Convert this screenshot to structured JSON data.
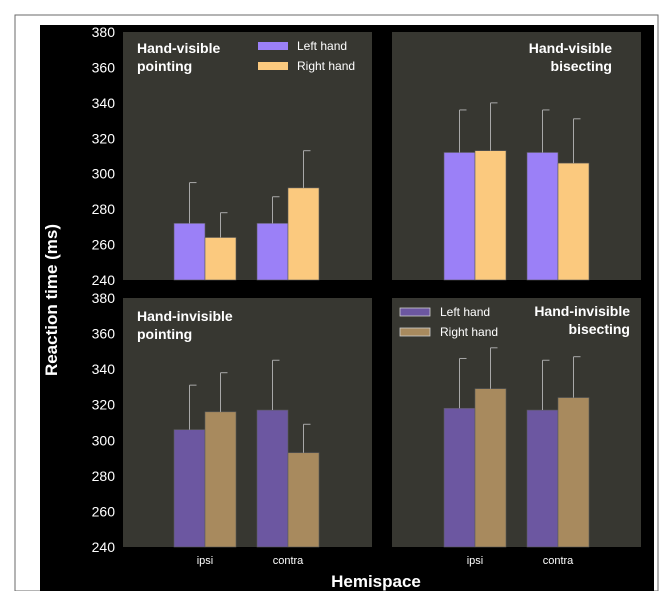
{
  "figure": {
    "ylabel": "Reaction time (ms)",
    "xlabel": "Hemispace",
    "colors": {
      "background": "#000000",
      "panel": "#373731",
      "left_visible": "#9b80f7",
      "right_visible": "#fbc97e",
      "left_invisible": "#6c57a1",
      "right_invisible": "#a88a5e",
      "error_bar": "#a8a8a8",
      "text": "#ffffff"
    }
  },
  "chart_data": [
    {
      "type": "bar",
      "title_lines": [
        "Hand-visible",
        "pointing"
      ],
      "categories": [
        "ipsi",
        "contra"
      ],
      "ylim": [
        240,
        380
      ],
      "yticks": [
        240,
        260,
        280,
        300,
        320,
        340,
        360,
        380
      ],
      "series": [
        {
          "name": "Left hand",
          "values": [
            272,
            272
          ],
          "errors": [
            23,
            15
          ]
        },
        {
          "name": "Right hand",
          "values": [
            264,
            292
          ],
          "errors": [
            14,
            21
          ]
        }
      ],
      "legend": "top-left"
    },
    {
      "type": "bar",
      "title_lines": [
        "Hand-visible",
        "bisecting"
      ],
      "categories": [
        "ipsi",
        "contra"
      ],
      "ylim": [
        240,
        380
      ],
      "series": [
        {
          "name": "Left hand",
          "values": [
            312,
            312
          ],
          "errors": [
            24,
            24
          ]
        },
        {
          "name": "Right hand",
          "values": [
            313,
            306
          ],
          "errors": [
            27,
            25
          ]
        }
      ]
    },
    {
      "type": "bar",
      "title_lines": [
        "Hand-invisible",
        "pointing"
      ],
      "categories": [
        "ipsi",
        "contra"
      ],
      "ylim": [
        240,
        380
      ],
      "yticks": [
        240,
        260,
        280,
        300,
        320,
        340,
        360,
        380
      ],
      "series": [
        {
          "name": "Left hand",
          "values": [
            306,
            317
          ],
          "errors": [
            25,
            28
          ]
        },
        {
          "name": "Right hand",
          "values": [
            316,
            293
          ],
          "errors": [
            22,
            16
          ]
        }
      ]
    },
    {
      "type": "bar",
      "title_lines": [
        "Hand-invisible",
        "bisecting"
      ],
      "categories": [
        "ipsi",
        "contra"
      ],
      "ylim": [
        240,
        380
      ],
      "series": [
        {
          "name": "Left hand",
          "values": [
            318,
            317
          ],
          "errors": [
            28,
            28
          ]
        },
        {
          "name": "Right hand",
          "values": [
            329,
            324
          ],
          "errors": [
            23,
            23
          ]
        }
      ],
      "legend": "top-left"
    }
  ]
}
